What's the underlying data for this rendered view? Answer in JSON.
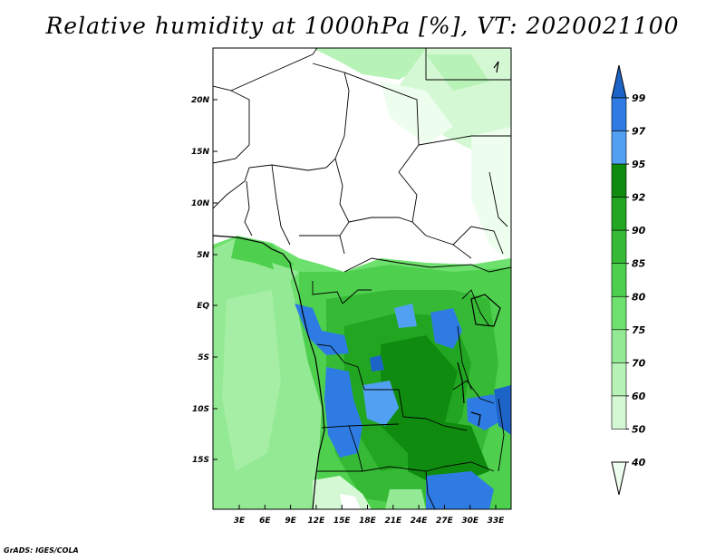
{
  "title": "Relative humidity at 1000hPa [%], VT: 2020021100",
  "footer": "GrADS: IGES/COLA",
  "map": {
    "lat_labels": [
      "20N",
      "15N",
      "10N",
      "5N",
      "EQ",
      "5S",
      "10S",
      "15S"
    ],
    "lon_labels": [
      "3E",
      "6E",
      "9E",
      "12E",
      "15E",
      "18E",
      "21E",
      "24E",
      "27E",
      "30E",
      "33E"
    ]
  },
  "colorbar": {
    "levels": [
      "99",
      "97",
      "95",
      "92",
      "90",
      "85",
      "80",
      "75",
      "70",
      "60",
      "50",
      "40"
    ],
    "colors": [
      "#1d64c9",
      "#2e7ce3",
      "#52a0f2",
      "#0f8c0f",
      "#22a622",
      "#36ba36",
      "#4ed04e",
      "#6ee06e",
      "#94ea94",
      "#b7f2b7",
      "#d4f8d4",
      "#eefeee"
    ]
  }
}
